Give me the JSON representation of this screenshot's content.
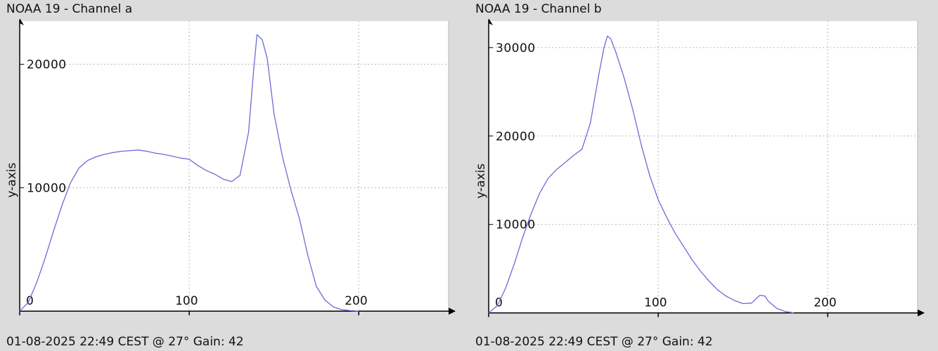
{
  "colors": {
    "background": "#dcdcdc",
    "plot_bg": "#ffffff",
    "line": "#6b6bd6",
    "grid": "#b8b8b8",
    "axis": "#000000"
  },
  "icons": {
    "axis_arrow": "triangle-arrow"
  },
  "panels": [
    {
      "title": "NOAA 19 - Channel a",
      "footer": "01-08-2025 22:49 CEST @ 27° Gain: 42"
    },
    {
      "title": "NOAA 19 - Channel b",
      "footer": "01-08-2025 22:49 CEST @ 27° Gain: 42"
    }
  ],
  "chart_data": [
    {
      "type": "line",
      "title": "NOAA 19 - Channel a",
      "xlabel": "",
      "ylabel": "y-axis",
      "xlim": [
        0,
        253
      ],
      "ylim": [
        -500,
        23500
      ],
      "grid": true,
      "xticks": [
        0,
        100,
        200
      ],
      "yticks": [
        10000,
        20000
      ],
      "xtick_labels": [
        "0",
        "100",
        "200"
      ],
      "ytick_labels": [
        "10000",
        "20000"
      ],
      "x": [
        0,
        5,
        10,
        15,
        20,
        25,
        30,
        35,
        40,
        45,
        50,
        55,
        60,
        65,
        70,
        75,
        80,
        85,
        90,
        95,
        100,
        105,
        110,
        115,
        120,
        125,
        130,
        135,
        138,
        140,
        143,
        146,
        150,
        155,
        160,
        165,
        170,
        175,
        180,
        185,
        190,
        195,
        200
      ],
      "series": [
        {
          "values": [
            0,
            700,
            2300,
            4300,
            6500,
            8600,
            10400,
            11600,
            12200,
            12500,
            12700,
            12850,
            12950,
            13000,
            13050,
            12950,
            12800,
            12700,
            12550,
            12400,
            12300,
            11800,
            11400,
            11100,
            10700,
            10500,
            11000,
            14500,
            19500,
            22400,
            22000,
            20500,
            16000,
            12500,
            9800,
            7500,
            4500,
            2000,
            900,
            350,
            120,
            40,
            0
          ]
        }
      ]
    },
    {
      "type": "line",
      "title": "NOAA 19 - Channel b",
      "xlabel": "",
      "ylabel": "y-axis",
      "xlim": [
        0,
        253
      ],
      "ylim": [
        -500,
        33000
      ],
      "grid": true,
      "xticks": [
        0,
        100,
        200
      ],
      "yticks": [
        10000,
        20000,
        30000
      ],
      "xtick_labels": [
        "0",
        "100",
        "200"
      ],
      "ytick_labels": [
        "10000",
        "20000",
        "30000"
      ],
      "x": [
        0,
        5,
        10,
        15,
        20,
        25,
        30,
        35,
        40,
        45,
        50,
        55,
        60,
        65,
        68,
        70,
        72,
        75,
        80,
        85,
        90,
        95,
        100,
        105,
        110,
        115,
        120,
        125,
        130,
        135,
        140,
        145,
        150,
        155,
        160,
        163,
        165,
        170,
        175,
        180
      ],
      "series": [
        {
          "values": [
            0,
            800,
            2800,
            5500,
            8500,
            11200,
            13500,
            15200,
            16200,
            17000,
            17800,
            18500,
            21500,
            27000,
            30000,
            31300,
            31000,
            29500,
            26500,
            23000,
            19000,
            15500,
            12800,
            10800,
            9000,
            7500,
            6000,
            4700,
            3600,
            2600,
            1900,
            1400,
            1050,
            1100,
            2000,
            1900,
            1300,
            500,
            150,
            0
          ]
        }
      ]
    }
  ]
}
